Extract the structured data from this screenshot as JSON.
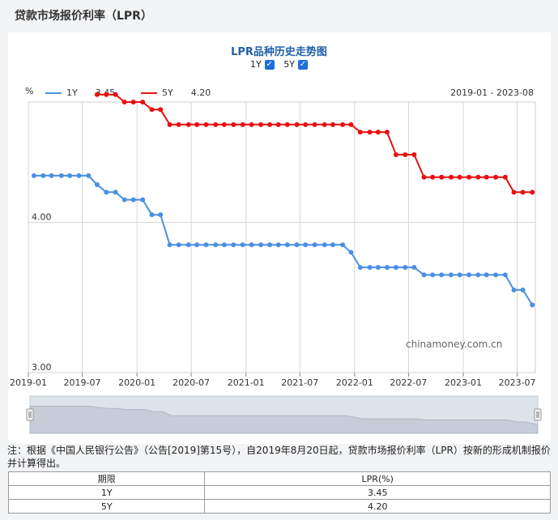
{
  "page": {
    "title": "贷款市场报价利率（LPR）",
    "chart_title": "LPR品种历史走势图",
    "unit": "%",
    "date_range": "2019-01 - 2023-08",
    "watermark": "chinamoney.com.cn",
    "toggles": [
      {
        "label": "1Y",
        "checked": true,
        "mark": "✓"
      },
      {
        "label": "5Y",
        "checked": true,
        "mark": "✓"
      }
    ],
    "legend": [
      {
        "name": "1Y",
        "value": "3.45",
        "color": "#4a90e2"
      },
      {
        "name": "5Y",
        "value": "4.20",
        "color": "#e81010"
      }
    ],
    "note": "注：根据《中国人民银行公告》（公告[2019]第15号），自2019年8月20日起，贷款市场报价利率（LPR）按新的形成机制报价并计算得出。",
    "table": {
      "headers": [
        "期限",
        "LPR(%)"
      ],
      "rows": [
        [
          "1Y",
          "3.45"
        ],
        [
          "5Y",
          "4.20"
        ]
      ]
    }
  },
  "chart_data": {
    "type": "line",
    "xlabel": "",
    "ylabel": "%",
    "x_ticks": [
      "2019-01",
      "2019-07",
      "2020-01",
      "2020-07",
      "2021-01",
      "2021-07",
      "2022-01",
      "2022-07",
      "2023-01",
      "2023-07"
    ],
    "y_ticks": [
      "4.00",
      "3.00"
    ],
    "ylim": [
      3.0,
      4.8
    ],
    "grid": true,
    "series": [
      {
        "name": "1Y",
        "color": "#4a90e2",
        "points": [
          [
            "2019-01-20",
            4.31
          ],
          [
            "2019-02-20",
            4.31
          ],
          [
            "2019-03-20",
            4.31
          ],
          [
            "2019-04-22",
            4.31
          ],
          [
            "2019-05-20",
            4.31
          ],
          [
            "2019-06-20",
            4.31
          ],
          [
            "2019-07-22",
            4.31
          ],
          [
            "2019-08-20",
            4.25
          ],
          [
            "2019-09-20",
            4.2
          ],
          [
            "2019-10-21",
            4.2
          ],
          [
            "2019-11-20",
            4.15
          ],
          [
            "2019-12-20",
            4.15
          ],
          [
            "2020-01-20",
            4.15
          ],
          [
            "2020-02-20",
            4.05
          ],
          [
            "2020-03-20",
            4.05
          ],
          [
            "2020-04-20",
            3.85
          ],
          [
            "2020-05-20",
            3.85
          ],
          [
            "2020-06-22",
            3.85
          ],
          [
            "2020-07-20",
            3.85
          ],
          [
            "2020-08-20",
            3.85
          ],
          [
            "2020-09-21",
            3.85
          ],
          [
            "2020-10-20",
            3.85
          ],
          [
            "2020-11-20",
            3.85
          ],
          [
            "2020-12-21",
            3.85
          ],
          [
            "2021-01-20",
            3.85
          ],
          [
            "2021-02-20",
            3.85
          ],
          [
            "2021-03-22",
            3.85
          ],
          [
            "2021-04-20",
            3.85
          ],
          [
            "2021-05-20",
            3.85
          ],
          [
            "2021-06-21",
            3.85
          ],
          [
            "2021-07-20",
            3.85
          ],
          [
            "2021-08-20",
            3.85
          ],
          [
            "2021-09-22",
            3.85
          ],
          [
            "2021-10-20",
            3.85
          ],
          [
            "2021-11-22",
            3.85
          ],
          [
            "2021-12-20",
            3.8
          ],
          [
            "2022-01-20",
            3.7
          ],
          [
            "2022-02-21",
            3.7
          ],
          [
            "2022-03-21",
            3.7
          ],
          [
            "2022-04-20",
            3.7
          ],
          [
            "2022-05-20",
            3.7
          ],
          [
            "2022-06-20",
            3.7
          ],
          [
            "2022-07-20",
            3.7
          ],
          [
            "2022-08-22",
            3.65
          ],
          [
            "2022-09-20",
            3.65
          ],
          [
            "2022-10-20",
            3.65
          ],
          [
            "2022-11-21",
            3.65
          ],
          [
            "2022-12-20",
            3.65
          ],
          [
            "2023-01-20",
            3.65
          ],
          [
            "2023-02-20",
            3.65
          ],
          [
            "2023-03-20",
            3.65
          ],
          [
            "2023-04-20",
            3.65
          ],
          [
            "2023-05-22",
            3.65
          ],
          [
            "2023-06-20",
            3.55
          ],
          [
            "2023-07-20",
            3.55
          ],
          [
            "2023-08-21",
            3.45
          ]
        ]
      },
      {
        "name": "5Y",
        "color": "#e81010",
        "points": [
          [
            "2019-08-20",
            4.85
          ],
          [
            "2019-09-20",
            4.85
          ],
          [
            "2019-10-21",
            4.85
          ],
          [
            "2019-11-20",
            4.8
          ],
          [
            "2019-12-20",
            4.8
          ],
          [
            "2020-01-20",
            4.8
          ],
          [
            "2020-02-20",
            4.75
          ],
          [
            "2020-03-20",
            4.75
          ],
          [
            "2020-04-20",
            4.65
          ],
          [
            "2020-05-20",
            4.65
          ],
          [
            "2020-06-22",
            4.65
          ],
          [
            "2020-07-20",
            4.65
          ],
          [
            "2020-08-20",
            4.65
          ],
          [
            "2020-09-21",
            4.65
          ],
          [
            "2020-10-20",
            4.65
          ],
          [
            "2020-11-20",
            4.65
          ],
          [
            "2020-12-21",
            4.65
          ],
          [
            "2021-01-20",
            4.65
          ],
          [
            "2021-02-20",
            4.65
          ],
          [
            "2021-03-22",
            4.65
          ],
          [
            "2021-04-20",
            4.65
          ],
          [
            "2021-05-20",
            4.65
          ],
          [
            "2021-06-21",
            4.65
          ],
          [
            "2021-07-20",
            4.65
          ],
          [
            "2021-08-20",
            4.65
          ],
          [
            "2021-09-22",
            4.65
          ],
          [
            "2021-10-20",
            4.65
          ],
          [
            "2021-11-22",
            4.65
          ],
          [
            "2021-12-20",
            4.65
          ],
          [
            "2022-01-20",
            4.6
          ],
          [
            "2022-02-21",
            4.6
          ],
          [
            "2022-03-21",
            4.6
          ],
          [
            "2022-04-20",
            4.6
          ],
          [
            "2022-05-20",
            4.45
          ],
          [
            "2022-06-20",
            4.45
          ],
          [
            "2022-07-20",
            4.45
          ],
          [
            "2022-08-22",
            4.3
          ],
          [
            "2022-09-20",
            4.3
          ],
          [
            "2022-10-20",
            4.3
          ],
          [
            "2022-11-21",
            4.3
          ],
          [
            "2022-12-20",
            4.3
          ],
          [
            "2023-01-20",
            4.3
          ],
          [
            "2023-02-20",
            4.3
          ],
          [
            "2023-03-20",
            4.3
          ],
          [
            "2023-04-20",
            4.3
          ],
          [
            "2023-05-22",
            4.3
          ],
          [
            "2023-06-20",
            4.2
          ],
          [
            "2023-07-20",
            4.2
          ],
          [
            "2023-08-21",
            4.2
          ]
        ]
      }
    ]
  }
}
